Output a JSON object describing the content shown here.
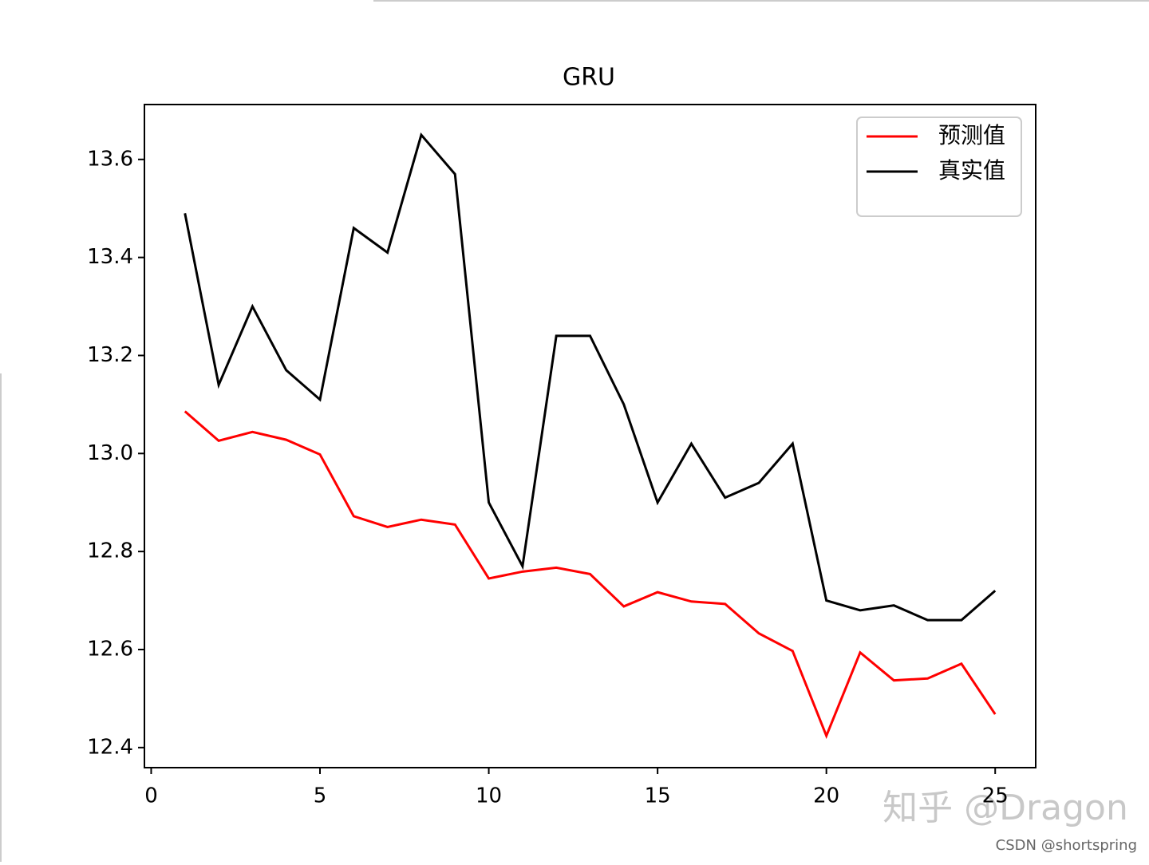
{
  "chart_data": {
    "type": "line",
    "title": "GRU",
    "x": [
      1,
      2,
      3,
      4,
      5,
      6,
      7,
      8,
      9,
      10,
      11,
      12,
      13,
      14,
      15,
      16,
      17,
      18,
      19,
      20,
      21,
      22,
      23,
      24,
      25
    ],
    "series": [
      {
        "name": "预测值",
        "color": "#ff0000",
        "values": [
          13.086,
          13.026,
          13.044,
          13.028,
          12.998,
          12.872,
          12.85,
          12.865,
          12.855,
          12.745,
          12.759,
          12.767,
          12.754,
          12.688,
          12.717,
          12.698,
          12.693,
          12.633,
          12.597,
          12.424,
          12.594,
          12.537,
          12.541,
          12.571,
          12.468
        ]
      },
      {
        "name": "真实值",
        "color": "#000000",
        "values": [
          13.49,
          13.14,
          13.3,
          13.17,
          13.11,
          13.46,
          13.41,
          13.65,
          13.57,
          12.9,
          12.77,
          13.24,
          13.24,
          13.1,
          12.9,
          13.02,
          12.91,
          12.94,
          13.02,
          12.7,
          12.68,
          12.69,
          12.66,
          12.66,
          12.72
        ]
      }
    ],
    "xlim": [
      -0.2,
      26.2
    ],
    "xticks": [
      0,
      5,
      10,
      15,
      20,
      25
    ],
    "ylim": [
      12.359,
      13.712
    ],
    "yticks": [
      12.4,
      12.6,
      12.8,
      {
        "value": 13,
        "label": "13.0"
      },
      13.2,
      13.4,
      13.6
    ],
    "legend": "upper right",
    "watermarks": [
      "知乎 @Dragon",
      "CSDN @shortspring"
    ]
  }
}
